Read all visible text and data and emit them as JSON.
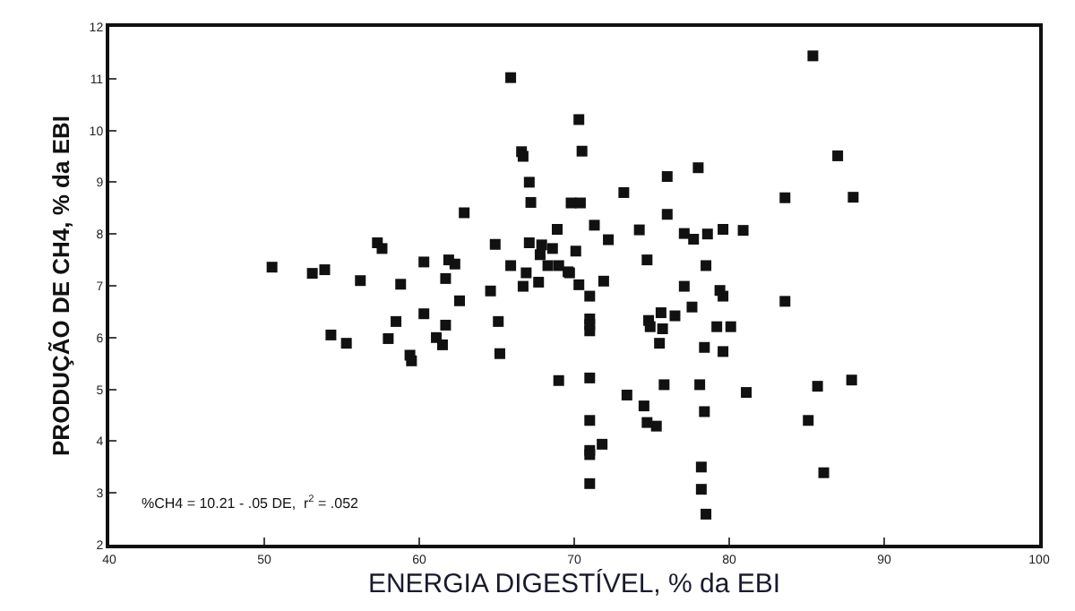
{
  "chart_data": {
    "type": "scatter",
    "xlabel": "ENERGIA DIGESTÍVEL, % da EBI",
    "ylabel": "PRODUÇÃO DE CH4, % da EBI",
    "x": [
      50.5,
      53.1,
      53.9,
      56.2,
      57.3,
      57.6,
      58.8,
      60.3,
      61.9,
      62.3,
      61.7,
      62.6,
      62.9,
      64.6,
      64.9,
      65.9,
      65.9,
      66.6,
      66.7,
      66.7,
      66.9,
      67.1,
      67.2,
      67.1,
      67.7,
      67.9,
      67.8,
      68.6,
      68.3,
      69.0,
      68.9,
      69.6,
      69.8,
      70.3,
      70.5,
      85.4,
      87.0,
      88.0,
      83.6,
      78.0,
      76.0,
      73.2,
      70.4,
      76.0,
      71.3,
      72.2,
      74.2,
      77.1,
      77.7,
      78.6,
      79.6,
      80.9,
      70.1,
      74.7,
      78.5,
      69.7,
      71.9,
      70.3,
      71.0,
      77.1,
      79.4,
      79.6,
      83.6,
      54.3,
      55.3,
      58.0,
      58.5,
      60.3,
      61.1,
      61.5,
      61.7,
      59.4,
      59.5,
      65.1,
      65.2,
      69.0,
      71.0,
      71.0,
      71.0,
      71.0,
      71.0,
      71.0,
      71.0,
      71.8,
      71.0,
      73.4,
      74.5,
      74.7,
      75.3,
      74.8,
      74.9,
      75.6,
      75.7,
      76.5,
      75.5,
      75.8,
      77.6,
      78.4,
      79.2,
      80.1,
      79.6,
      78.1,
      78.4,
      78.2,
      78.2,
      78.5,
      81.1,
      85.7,
      85.1,
      86.1,
      87.9
    ],
    "values": [
      7.36,
      7.24,
      7.31,
      7.1,
      7.83,
      7.72,
      7.03,
      7.46,
      7.5,
      7.42,
      7.14,
      6.71,
      8.41,
      6.9,
      7.8,
      11.02,
      7.39,
      9.59,
      9.5,
      6.99,
      7.25,
      9.0,
      8.61,
      7.83,
      7.07,
      7.79,
      7.6,
      7.72,
      7.39,
      7.39,
      8.09,
      7.27,
      8.6,
      10.21,
      9.6,
      11.44,
      9.51,
      8.71,
      8.7,
      9.28,
      9.11,
      8.8,
      8.6,
      8.38,
      8.17,
      7.89,
      8.08,
      8.01,
      7.9,
      8.0,
      8.09,
      8.07,
      7.67,
      7.5,
      7.39,
      7.25,
      7.09,
      7.02,
      6.8,
      6.99,
      6.91,
      6.8,
      6.7,
      6.05,
      5.89,
      5.98,
      6.31,
      6.46,
      6.0,
      5.86,
      6.24,
      5.66,
      5.55,
      6.31,
      5.69,
      5.17,
      6.36,
      6.25,
      6.13,
      5.22,
      4.4,
      3.82,
      3.74,
      3.94,
      3.18,
      4.89,
      4.68,
      4.36,
      4.29,
      6.33,
      6.21,
      6.48,
      6.17,
      6.42,
      5.89,
      5.09,
      6.59,
      5.81,
      6.21,
      6.21,
      5.73,
      5.09,
      4.57,
      3.5,
      3.07,
      2.59,
      4.94,
      5.06,
      4.4,
      3.39,
      5.18
    ],
    "color": "#111111",
    "marker": "square",
    "xlim": [
      40,
      100
    ],
    "xticks": [
      40,
      50,
      60,
      70,
      80,
      90,
      100
    ],
    "ylim": [
      2,
      12
    ],
    "yticks": [
      2,
      3,
      4,
      5,
      6,
      7,
      8,
      9,
      10,
      11,
      12
    ],
    "legend": false,
    "annotations": [
      "%CH4 = 10.21 - .05 DE,  r$^{2}$ = .052"
    ]
  }
}
